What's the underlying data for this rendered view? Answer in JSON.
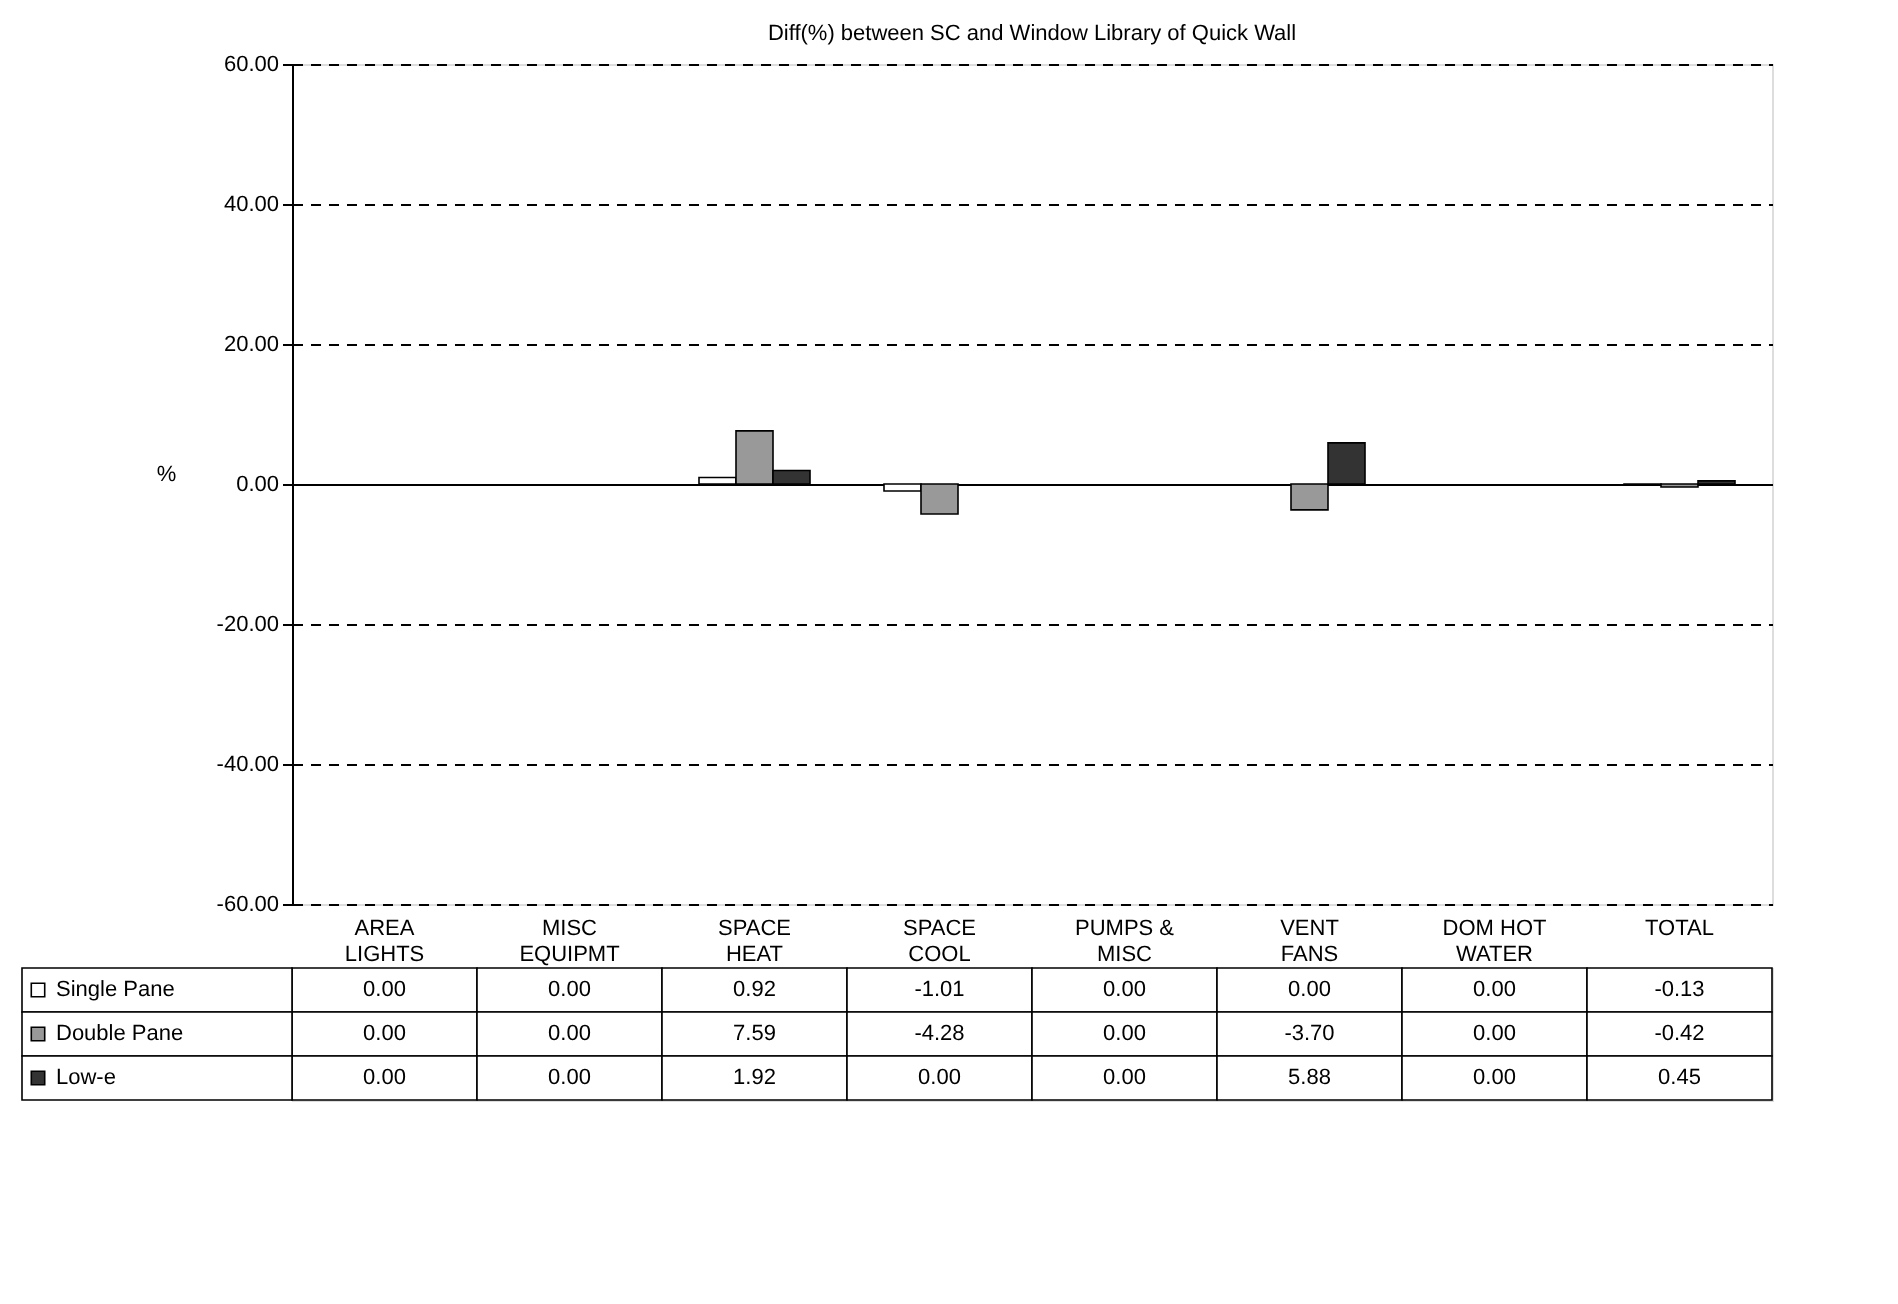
{
  "chart_data": {
    "type": "bar",
    "title": "Diff(%) between SC and Window Library of Quick Wall",
    "ylabel": "%",
    "categories": [
      "AREA LIGHTS",
      "MISC EQUIPMT",
      "SPACE HEAT",
      "SPACE COOL",
      "PUMPS & MISC",
      "VENT FANS",
      "DOM HOT WATER",
      "TOTAL"
    ],
    "series": [
      {
        "name": "Single Pane",
        "color": "#ffffff",
        "values": [
          0.0,
          0.0,
          0.92,
          -1.01,
          0.0,
          0.0,
          0.0,
          -0.13
        ],
        "value_labels": [
          "0.00",
          "0.00",
          "0.92",
          "-1.01",
          "0.00",
          "0.00",
          "0.00",
          "-0.13"
        ]
      },
      {
        "name": "Double Pane",
        "color": "#999999",
        "values": [
          0.0,
          0.0,
          7.59,
          -4.28,
          0.0,
          -3.7,
          0.0,
          -0.42
        ],
        "value_labels": [
          "0.00",
          "0.00",
          "7.59",
          "-4.28",
          "0.00",
          "-3.70",
          "0.00",
          "-0.42"
        ]
      },
      {
        "name": "Low-e",
        "color": "#333333",
        "values": [
          0.0,
          0.0,
          1.92,
          0.0,
          0.0,
          5.88,
          0.0,
          0.45
        ],
        "value_labels": [
          "0.00",
          "0.00",
          "1.92",
          "0.00",
          "0.00",
          "5.88",
          "0.00",
          "0.45"
        ]
      }
    ],
    "ylim": [
      -60,
      60
    ],
    "yticks": [
      {
        "value": -60,
        "label": "-60.00"
      },
      {
        "value": -40,
        "label": "-40.00"
      },
      {
        "value": -20,
        "label": "-20.00"
      },
      {
        "value": 0,
        "label": "0.00"
      },
      {
        "value": 20,
        "label": "20.00"
      },
      {
        "value": 40,
        "label": "40.00"
      },
      {
        "value": 60,
        "label": "60.00"
      }
    ],
    "grid": "y",
    "legend": "bottom"
  }
}
